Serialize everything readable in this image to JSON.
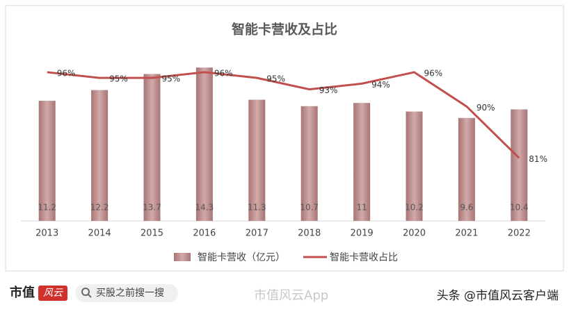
{
  "chart_data": {
    "type": "bar-line",
    "title": "智能卡营收及占比",
    "categories": [
      "2013",
      "2014",
      "2015",
      "2016",
      "2017",
      "2018",
      "2019",
      "2020",
      "2021",
      "2022"
    ],
    "series": [
      {
        "name": "智能卡营收（亿元）",
        "type": "bar",
        "color": "#b98989",
        "values": [
          11.2,
          12.2,
          13.7,
          14.3,
          11.3,
          10.7,
          11,
          10.2,
          9.6,
          10.4
        ]
      },
      {
        "name": "智能卡营收占比",
        "type": "line",
        "axis": "y2",
        "color": "#c0504d",
        "values": [
          96,
          95,
          95,
          96,
          95,
          93,
          94,
          96,
          90,
          81
        ],
        "value_labels": [
          "96%",
          "95%",
          "95%",
          "96%",
          "95%",
          "93%",
          "94%",
          "96%",
          "90%",
          "81%"
        ]
      }
    ],
    "ylim": [
      0,
      16
    ],
    "y2lim": [
      70,
      100
    ]
  },
  "footer": {
    "logo": "市值",
    "logo_badge": "风云",
    "search": "买股之前搜一搜",
    "watermark": "市值风云App",
    "credit": "头条 @市值风云客户端"
  }
}
